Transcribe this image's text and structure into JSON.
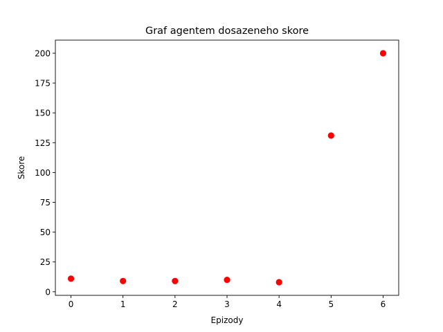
{
  "chart_data": {
    "type": "scatter",
    "title": "Graf agentem dosazeneho skore",
    "xlabel": "Epizody",
    "ylabel": "Skore",
    "x": [
      0,
      1,
      2,
      3,
      4,
      5,
      6
    ],
    "y": [
      11,
      9,
      9,
      10,
      8,
      131,
      200
    ],
    "xlim": [
      -0.3,
      6.3
    ],
    "ylim": [
      -3,
      211
    ],
    "xticks": [
      0,
      1,
      2,
      3,
      4,
      5,
      6
    ],
    "yticks": [
      0,
      25,
      50,
      75,
      100,
      125,
      150,
      175,
      200
    ],
    "grid": false,
    "marker_color": "#ff0000"
  }
}
